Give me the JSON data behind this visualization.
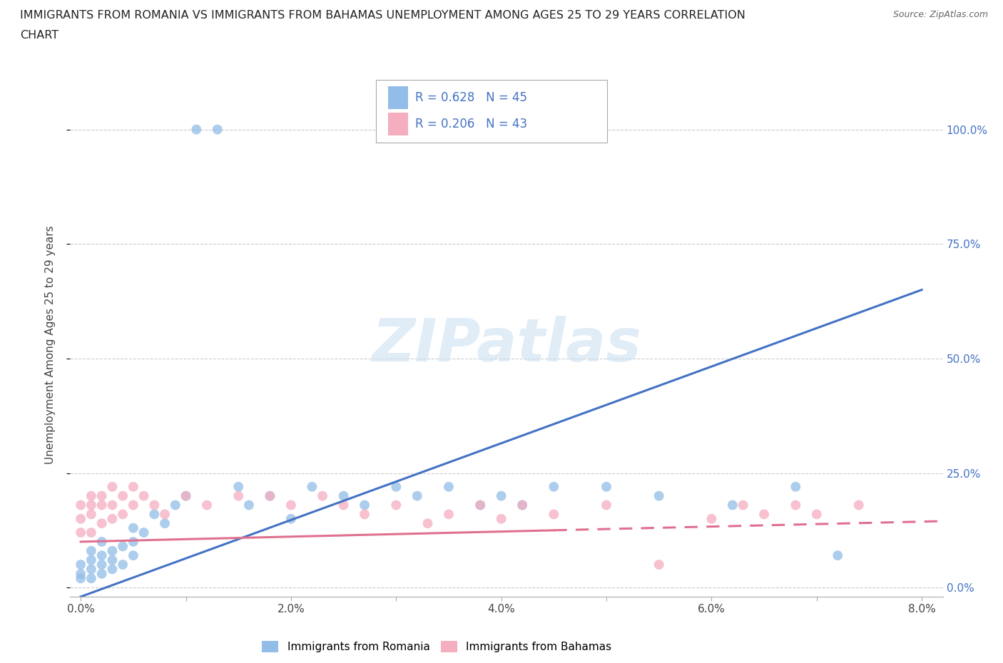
{
  "title_line1": "IMMIGRANTS FROM ROMANIA VS IMMIGRANTS FROM BAHAMAS UNEMPLOYMENT AMONG AGES 25 TO 29 YEARS CORRELATION",
  "title_line2": "CHART",
  "source": "Source: ZipAtlas.com",
  "ylabel": "Unemployment Among Ages 25 to 29 years",
  "xlim": [
    -0.001,
    0.082
  ],
  "ylim": [
    -0.02,
    1.08
  ],
  "xticks": [
    0.0,
    0.01,
    0.02,
    0.03,
    0.04,
    0.05,
    0.06,
    0.07,
    0.08
  ],
  "xtick_labels": [
    "0.0%",
    "",
    "2.0%",
    "",
    "4.0%",
    "",
    "6.0%",
    "",
    "8.0%"
  ],
  "ytick_labels": [
    "0.0%",
    "25.0%",
    "50.0%",
    "75.0%",
    "100.0%"
  ],
  "ytick_positions": [
    0.0,
    0.25,
    0.5,
    0.75,
    1.0
  ],
  "romania_color": "#92bde8",
  "bahamas_color": "#f5adc0",
  "romania_line_color": "#4472c4",
  "bahamas_line_color": "#e07090",
  "R_romania": 0.628,
  "N_romania": 45,
  "R_bahamas": 0.206,
  "N_bahamas": 43,
  "watermark": "ZIPatlas",
  "romania_x": [
    0.0,
    0.0,
    0.0,
    0.001,
    0.001,
    0.001,
    0.001,
    0.002,
    0.002,
    0.002,
    0.002,
    0.003,
    0.003,
    0.003,
    0.004,
    0.004,
    0.005,
    0.005,
    0.005,
    0.006,
    0.007,
    0.008,
    0.009,
    0.01,
    0.011,
    0.013,
    0.015,
    0.016,
    0.018,
    0.02,
    0.022,
    0.025,
    0.027,
    0.03,
    0.032,
    0.035,
    0.038,
    0.04,
    0.042,
    0.045,
    0.05,
    0.055,
    0.062,
    0.068,
    0.072
  ],
  "romania_y": [
    0.02,
    0.03,
    0.05,
    0.02,
    0.04,
    0.06,
    0.08,
    0.03,
    0.05,
    0.07,
    0.1,
    0.04,
    0.06,
    0.08,
    0.05,
    0.09,
    0.07,
    0.1,
    0.13,
    0.12,
    0.16,
    0.14,
    0.18,
    0.2,
    1.0,
    1.0,
    0.22,
    0.18,
    0.2,
    0.15,
    0.22,
    0.2,
    0.18,
    0.22,
    0.2,
    0.22,
    0.18,
    0.2,
    0.18,
    0.22,
    0.22,
    0.2,
    0.18,
    0.22,
    0.07
  ],
  "bahamas_x": [
    0.0,
    0.0,
    0.0,
    0.001,
    0.001,
    0.001,
    0.001,
    0.002,
    0.002,
    0.002,
    0.003,
    0.003,
    0.003,
    0.004,
    0.004,
    0.005,
    0.005,
    0.006,
    0.007,
    0.008,
    0.01,
    0.012,
    0.015,
    0.018,
    0.02,
    0.023,
    0.025,
    0.027,
    0.03,
    0.033,
    0.035,
    0.038,
    0.04,
    0.042,
    0.045,
    0.05,
    0.055,
    0.06,
    0.063,
    0.065,
    0.068,
    0.07,
    0.074
  ],
  "bahamas_y": [
    0.12,
    0.15,
    0.18,
    0.12,
    0.16,
    0.2,
    0.18,
    0.14,
    0.18,
    0.2,
    0.15,
    0.18,
    0.22,
    0.16,
    0.2,
    0.18,
    0.22,
    0.2,
    0.18,
    0.16,
    0.2,
    0.18,
    0.2,
    0.2,
    0.18,
    0.2,
    0.18,
    0.16,
    0.18,
    0.14,
    0.16,
    0.18,
    0.15,
    0.18,
    0.16,
    0.18,
    0.05,
    0.15,
    0.18,
    0.16,
    0.18,
    0.16,
    0.18
  ],
  "rom_line_x0": 0.0,
  "rom_line_y0": -0.02,
  "rom_line_x1": 0.08,
  "rom_line_y1": 0.65,
  "bah_line_solid_x0": 0.0,
  "bah_line_solid_y0": 0.1,
  "bah_line_solid_x1": 0.045,
  "bah_line_solid_y1": 0.125,
  "bah_line_dash_x0": 0.045,
  "bah_line_dash_y0": 0.125,
  "bah_line_dash_x1": 0.082,
  "bah_line_dash_y1": 0.145
}
